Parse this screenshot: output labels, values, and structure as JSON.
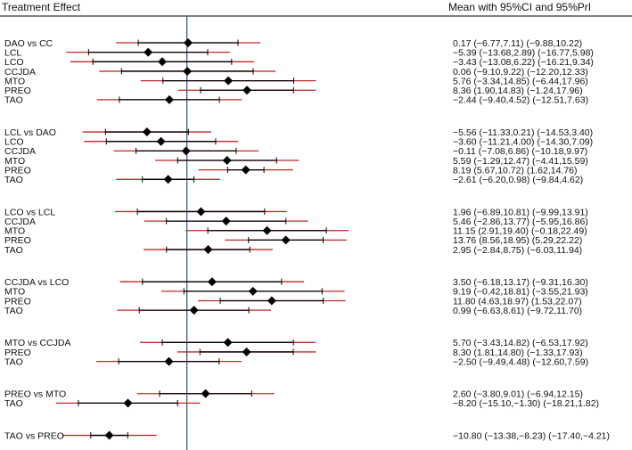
{
  "chart_data": {
    "type": "forest",
    "title_left": "Treatment Effect",
    "title_right": "Mean with 95%CI and 95%PrI",
    "reference_line": 0,
    "xlim": [
      -26,
      36
    ],
    "colors": {
      "ci": "#000000",
      "pri": "#c62828",
      "reference": "#3a5b8c",
      "marker": "#000000"
    },
    "groups": [
      {
        "rows": [
          {
            "label": "DAO vs CC",
            "mean": 0.17,
            "ci": [
              -6.77,
              7.11
            ],
            "pri": [
              -9.88,
              10.22
            ],
            "text": "0.17 (−6.77,7.11)  (−9.88,10.22)"
          },
          {
            "label": "LCL",
            "mean": -5.39,
            "ci": [
              -13.68,
              2.89
            ],
            "pri": [
              -16.77,
              5.98
            ],
            "text": "−5.39 (−13.68,2.89)  (−16.77,5.98)"
          },
          {
            "label": "LCO",
            "mean": -3.43,
            "ci": [
              -13.08,
              6.22
            ],
            "pri": [
              -16.21,
              9.34
            ],
            "text": "−3.43 (−13.08,6.22)  (−16.21,9.34)"
          },
          {
            "label": "CCJDA",
            "mean": 0.06,
            "ci": [
              -9.1,
              9.22
            ],
            "pri": [
              -12.2,
              12.33
            ],
            "text": "0.06 (−9.10,9.22)  (−12.20,12.33)"
          },
          {
            "label": "MTO",
            "mean": 5.76,
            "ci": [
              -3.34,
              14.85
            ],
            "pri": [
              -6.44,
              17.96
            ],
            "text": "5.76 (−3.34,14.85)  (−6.44,17.96)"
          },
          {
            "label": "PREO",
            "mean": 8.36,
            "ci": [
              1.9,
              14.83
            ],
            "pri": [
              -1.24,
              17.96
            ],
            "text": "8.36 (1.90,14.83)  (−1.24,17.96)"
          },
          {
            "label": "TAO",
            "mean": -2.44,
            "ci": [
              -9.4,
              4.52
            ],
            "pri": [
              -12.51,
              7.63
            ],
            "text": "−2.44 (−9.40,4.52)  (−12.51,7.63)"
          }
        ]
      },
      {
        "rows": [
          {
            "label": "LCL vs DAO",
            "mean": -5.56,
            "ci": [
              -11.33,
              0.21
            ],
            "pri": [
              -14.53,
              3.4
            ],
            "text": "−5.56 (−11.33,0.21)  (−14.53,3.40)"
          },
          {
            "label": "LCO",
            "mean": -3.6,
            "ci": [
              -11.21,
              4.0
            ],
            "pri": [
              -14.3,
              7.09
            ],
            "text": "−3.60 (−11.21,4.00)  (−14.30,7.09)"
          },
          {
            "label": "CCJDA",
            "mean": -0.11,
            "ci": [
              -7.08,
              6.86
            ],
            "pri": [
              -10.18,
              9.97
            ],
            "text": "−0.11 (−7.08,6.86)  (−10.18,9.97)"
          },
          {
            "label": "MTO",
            "mean": 5.59,
            "ci": [
              -1.29,
              12.47
            ],
            "pri": [
              -4.41,
              15.59
            ],
            "text": "5.59 (−1.29,12.47)  (−4.41,15.59)"
          },
          {
            "label": "PREO",
            "mean": 8.19,
            "ci": [
              5.67,
              10.72
            ],
            "pri": [
              1.62,
              14.76
            ],
            "text": "8.19 (5.67,10.72)  (1.62,14.76)"
          },
          {
            "label": "TAO",
            "mean": -2.61,
            "ci": [
              -6.2,
              0.98
            ],
            "pri": [
              -9.84,
              4.62
            ],
            "text": "−2.61 (−6.20,0.98)  (−9.84,4.62)"
          }
        ]
      },
      {
        "rows": [
          {
            "label": "LCO vs LCL",
            "mean": 1.96,
            "ci": [
              -6.89,
              10.81
            ],
            "pri": [
              -9.99,
              13.91
            ],
            "text": "1.96 (−6.89,10.81)  (−9.99,13.91)"
          },
          {
            "label": "CCJDA",
            "mean": 5.46,
            "ci": [
              -2.86,
              13.77
            ],
            "pri": [
              -5.95,
              16.86
            ],
            "text": "5.46 (−2.86,13.77)  (−5.95,16.86)"
          },
          {
            "label": "MTO",
            "mean": 11.15,
            "ci": [
              2.91,
              19.4
            ],
            "pri": [
              -0.18,
              22.49
            ],
            "text": "11.15 (2.91,19.40)  (−0.18,22.49)"
          },
          {
            "label": "PREO",
            "mean": 13.76,
            "ci": [
              8.56,
              18.95
            ],
            "pri": [
              5.29,
              22.22
            ],
            "text": "13.76 (8.56,18.95)  (5.29,22.22)"
          },
          {
            "label": "TAO",
            "mean": 2.95,
            "ci": [
              -2.84,
              8.75
            ],
            "pri": [
              -6.03,
              11.94
            ],
            "text": "2.95 (−2.84,8.75)  (−6.03,11.94)"
          }
        ]
      },
      {
        "rows": [
          {
            "label": "CCJDA vs LCO",
            "mean": 3.5,
            "ci": [
              -6.18,
              13.17
            ],
            "pri": [
              -9.31,
              16.3
            ],
            "text": "3.50 (−6.18,13.17)  (−9.31,16.30)"
          },
          {
            "label": "MTO",
            "mean": 9.19,
            "ci": [
              -0.42,
              18.81
            ],
            "pri": [
              -3.55,
              21.93
            ],
            "text": "9.19 (−0.42,18.81)  (−3.55,21.93)"
          },
          {
            "label": "PREO",
            "mean": 11.8,
            "ci": [
              4.63,
              18.97
            ],
            "pri": [
              1.53,
              22.07
            ],
            "text": "11.80 (4.63,18.97)  (1.53,22.07)"
          },
          {
            "label": "TAO",
            "mean": 0.99,
            "ci": [
              -6.63,
              8.61
            ],
            "pri": [
              -9.72,
              11.7
            ],
            "text": "0.99 (−6.63,8.61)  (−9.72,11.70)"
          }
        ]
      },
      {
        "rows": [
          {
            "label": "MTO vs CCJDA",
            "mean": 5.7,
            "ci": [
              -3.43,
              14.82
            ],
            "pri": [
              -6.53,
              17.92
            ],
            "text": "5.70 (−3.43,14.82)  (−6.53,17.92)"
          },
          {
            "label": "PREO",
            "mean": 8.3,
            "ci": [
              1.81,
              14.8
            ],
            "pri": [
              -1.33,
              17.93
            ],
            "text": "8.30 (1.81,14.80)  (−1.33,17.93)"
          },
          {
            "label": "TAO",
            "mean": -2.5,
            "ci": [
              -9.49,
              4.48
            ],
            "pri": [
              -12.6,
              7.59
            ],
            "text": "−2.50 (−9.49,4.48)  (−12.60,7.59)"
          }
        ]
      },
      {
        "rows": [
          {
            "label": "PREO vs MTO",
            "mean": 2.6,
            "ci": [
              -3.8,
              9.01
            ],
            "pri": [
              -6.94,
              12.15
            ],
            "text": "2.60 (−3.80,9.01)  (−6.94,12.15)"
          },
          {
            "label": "TAO",
            "mean": -8.2,
            "ci": [
              -15.1,
              -1.3
            ],
            "pri": [
              -18.21,
              1.82
            ],
            "text": "−8.20 (−15.10,−1.30)  (−18.21,1.82)"
          }
        ]
      },
      {
        "rows": [
          {
            "label": "TAO vs PREO",
            "mean": -10.8,
            "ci": [
              -13.38,
              -8.23
            ],
            "pri": [
              -17.4,
              -4.21
            ],
            "text": "−10.80 (−13.38,−8.23)  (−17.40,−4.21)"
          }
        ]
      }
    ]
  }
}
